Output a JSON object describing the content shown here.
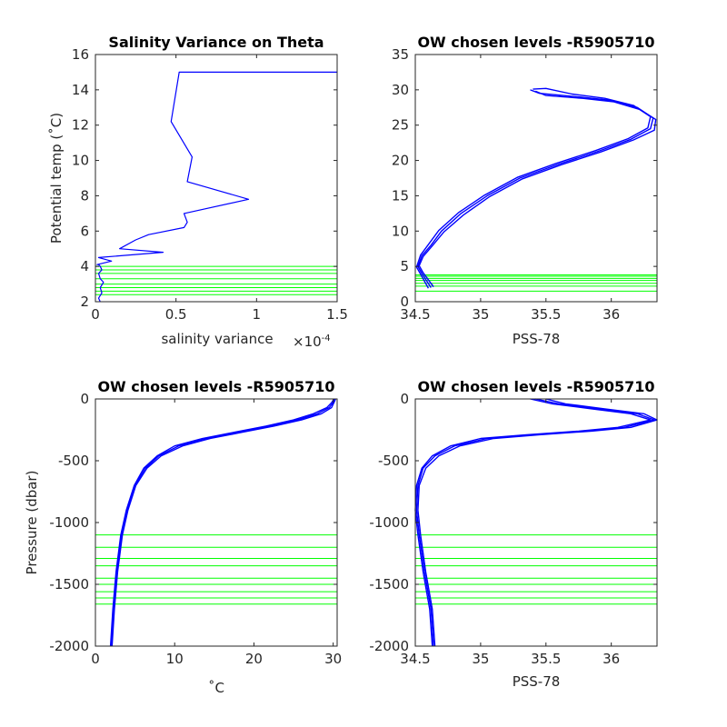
{
  "colors": {
    "profile": "#0000ff",
    "level": "#00ff00",
    "axis": "#262626"
  },
  "chart_data": [
    {
      "type": "line",
      "title": "Salinity Variance on Theta",
      "xlabel": "salinity variance",
      "xlabel_exponent": "×10",
      "xlabel_exponent_power": "-4",
      "ylabel": "Potential temp (˚C)",
      "xlim": [
        0,
        1.5
      ],
      "ylim": [
        2,
        16
      ],
      "xticks": [
        0,
        0.5,
        1,
        1.5
      ],
      "xtick_labels": [
        "0",
        "0.5",
        "1",
        "1.5"
      ],
      "yticks": [
        2,
        4,
        6,
        8,
        10,
        12,
        14,
        16
      ],
      "ytick_labels": [
        "2",
        "4",
        "6",
        "8",
        "10",
        "12",
        "14",
        "16"
      ],
      "series": [
        {
          "x": [
            0.03,
            0.02,
            0.04,
            0.03,
            0.05,
            0.03,
            0.02,
            0.04,
            0.03,
            0.02,
            0.01,
            0.1,
            0.02,
            0.42,
            0.15,
            0.25,
            0.33,
            0.55,
            0.57,
            0.55,
            0.95,
            0.57,
            0.6,
            0.47,
            0.52,
            1.5
          ],
          "y": [
            2.0,
            2.2,
            2.5,
            2.8,
            3.1,
            3.3,
            3.6,
            3.8,
            4.0,
            4.1,
            4.1,
            4.3,
            4.5,
            4.8,
            5.0,
            5.5,
            5.8,
            6.2,
            6.5,
            7.0,
            7.8,
            8.8,
            10.2,
            12.2,
            15.0,
            15.0
          ]
        }
      ],
      "levels": [
        2.4,
        2.6,
        2.8,
        3.0,
        3.3,
        3.6,
        3.8,
        4.0
      ],
      "levels_span": [
        0,
        1.5
      ]
    },
    {
      "type": "line",
      "title": "OW chosen levels -R5905710",
      "xlabel": "PSS-78",
      "ylabel": "",
      "xlim": [
        34.5,
        36.35
      ],
      "ylim": [
        0,
        35
      ],
      "xticks": [
        34.5,
        35,
        35.5,
        36
      ],
      "xtick_labels": [
        "34.5",
        "35",
        "35.5",
        "36"
      ],
      "yticks": [
        0,
        5,
        10,
        15,
        20,
        25,
        30,
        35
      ],
      "ytick_labels": [
        "0",
        "5",
        "10",
        "15",
        "20",
        "25",
        "30",
        "35"
      ],
      "series": [
        {
          "x": [
            34.62,
            34.55,
            34.52,
            34.55,
            34.62,
            34.7,
            34.85,
            35.05,
            35.3,
            35.6,
            35.9,
            36.15,
            36.3,
            36.32,
            36.2,
            36.0,
            35.75,
            35.45,
            35.38
          ],
          "y": [
            2.0,
            4.0,
            5.0,
            6.5,
            8.0,
            10.0,
            12.5,
            15.0,
            17.5,
            19.5,
            21.3,
            23.0,
            24.5,
            26.0,
            27.5,
            28.5,
            29.0,
            29.5,
            30.0
          ]
        },
        {
          "x": [
            34.64,
            34.56,
            34.53,
            34.56,
            34.63,
            34.72,
            34.87,
            35.07,
            35.32,
            35.62,
            35.92,
            36.17,
            36.33,
            36.34,
            36.22,
            36.02,
            35.78,
            35.5,
            35.42
          ],
          "y": [
            2.1,
            4.1,
            5.1,
            6.4,
            7.9,
            9.9,
            12.3,
            14.9,
            17.4,
            19.4,
            21.2,
            22.9,
            24.3,
            25.8,
            27.2,
            28.3,
            28.8,
            29.2,
            29.8
          ]
        },
        {
          "x": [
            34.6,
            34.54,
            34.51,
            34.54,
            34.6,
            34.68,
            34.83,
            35.03,
            35.28,
            35.58,
            35.88,
            36.13,
            36.28,
            36.3,
            36.17,
            35.95,
            35.7,
            35.5,
            35.4
          ],
          "y": [
            1.9,
            3.9,
            4.9,
            6.6,
            8.1,
            10.1,
            12.6,
            15.1,
            17.6,
            19.6,
            21.4,
            23.1,
            24.6,
            26.2,
            27.8,
            28.8,
            29.4,
            30.2,
            30.1
          ]
        }
      ],
      "levels": [
        1.5,
        2.2,
        2.6,
        3.0,
        3.3,
        3.6,
        3.8
      ],
      "levels_span": [
        34.5,
        36.35
      ]
    },
    {
      "type": "line",
      "title": "OW chosen levels -R5905710",
      "xlabel": "˚C",
      "ylabel": "Pressure (dbar)",
      "xlim": [
        0,
        30.5
      ],
      "ylim": [
        -2000,
        0
      ],
      "xticks": [
        0,
        10,
        20,
        30
      ],
      "xtick_labels": [
        "0",
        "10",
        "20",
        "30"
      ],
      "yticks": [
        -2000,
        -1500,
        -1000,
        -500,
        0
      ],
      "ytick_labels": [
        "-2000",
        "-1500",
        "-1000",
        "-500",
        "0"
      ],
      "series": [
        {
          "x": [
            2.0,
            2.3,
            2.7,
            3.3,
            4.0,
            5.0,
            6.3,
            8.0,
            10.5,
            14.0,
            18.0,
            22.0,
            25.5,
            28.0,
            29.5,
            30.0,
            30.2
          ],
          "y": [
            -2000,
            -1700,
            -1400,
            -1100,
            -900,
            -700,
            -560,
            -460,
            -380,
            -320,
            -270,
            -220,
            -170,
            -120,
            -70,
            -30,
            0
          ]
        },
        {
          "x": [
            2.1,
            2.4,
            2.8,
            3.4,
            4.1,
            5.1,
            6.5,
            8.3,
            11.0,
            14.5,
            18.5,
            22.5,
            26.0,
            28.5,
            29.8,
            30.1,
            30.3
          ],
          "y": [
            -2000,
            -1700,
            -1400,
            -1100,
            -900,
            -700,
            -560,
            -460,
            -380,
            -320,
            -270,
            -220,
            -170,
            -120,
            -70,
            -30,
            0
          ]
        },
        {
          "x": [
            1.9,
            2.2,
            2.6,
            3.2,
            3.9,
            4.9,
            6.1,
            7.8,
            10.0,
            13.5,
            17.5,
            21.5,
            25.0,
            27.5,
            29.2,
            29.8,
            30.1
          ],
          "y": [
            -2000,
            -1700,
            -1400,
            -1100,
            -900,
            -700,
            -560,
            -460,
            -380,
            -320,
            -270,
            -220,
            -170,
            -120,
            -70,
            -30,
            0
          ]
        }
      ],
      "levels": [
        -1100,
        -1200,
        -1290,
        -1350,
        -1450,
        -1500,
        -1560,
        -1610,
        -1660,
        -2000
      ],
      "levels_span": [
        0,
        30.5
      ]
    },
    {
      "type": "line",
      "title": "OW chosen levels -R5905710",
      "xlabel": "PSS-78",
      "ylabel": "",
      "xlim": [
        34.5,
        36.35
      ],
      "ylim": [
        -2000,
        0
      ],
      "xticks": [
        34.5,
        35,
        35.5,
        36
      ],
      "xtick_labels": [
        "34.5",
        "35",
        "35.5",
        "36"
      ],
      "yticks": [
        -2000,
        -1500,
        -1000,
        -500,
        0
      ],
      "ytick_labels": [
        "-2000",
        "-1500",
        "-1000",
        "-500",
        "0"
      ],
      "series": [
        {
          "x": [
            34.64,
            34.62,
            34.57,
            34.53,
            34.51,
            34.52,
            34.56,
            34.65,
            34.8,
            35.05,
            35.4,
            35.8,
            36.1,
            36.33,
            36.2,
            35.9,
            35.6,
            35.42
          ],
          "y": [
            -2000,
            -1700,
            -1400,
            -1100,
            -900,
            -700,
            -560,
            -460,
            -380,
            -320,
            -290,
            -260,
            -230,
            -170,
            -120,
            -80,
            -40,
            0
          ]
        },
        {
          "x": [
            34.65,
            34.63,
            34.58,
            34.54,
            34.52,
            34.53,
            34.58,
            34.68,
            34.84,
            35.1,
            35.45,
            35.85,
            36.15,
            36.35,
            36.25,
            35.95,
            35.65,
            35.5
          ],
          "y": [
            -2000,
            -1700,
            -1400,
            -1100,
            -900,
            -700,
            -560,
            -460,
            -380,
            -320,
            -290,
            -260,
            -230,
            -170,
            -120,
            -80,
            -40,
            0
          ]
        },
        {
          "x": [
            34.63,
            34.61,
            34.56,
            34.52,
            34.5,
            34.51,
            34.55,
            34.63,
            34.77,
            35.0,
            35.35,
            35.75,
            36.05,
            36.3,
            36.15,
            35.85,
            35.55,
            35.38
          ],
          "y": [
            -2000,
            -1700,
            -1400,
            -1100,
            -900,
            -700,
            -560,
            -460,
            -380,
            -320,
            -290,
            -260,
            -230,
            -170,
            -120,
            -80,
            -40,
            0
          ]
        }
      ],
      "levels": [
        -1100,
        -1200,
        -1290,
        -1350,
        -1450,
        -1500,
        -1560,
        -1610,
        -1660,
        -2000
      ],
      "levels_span": [
        34.5,
        36.35
      ]
    }
  ]
}
